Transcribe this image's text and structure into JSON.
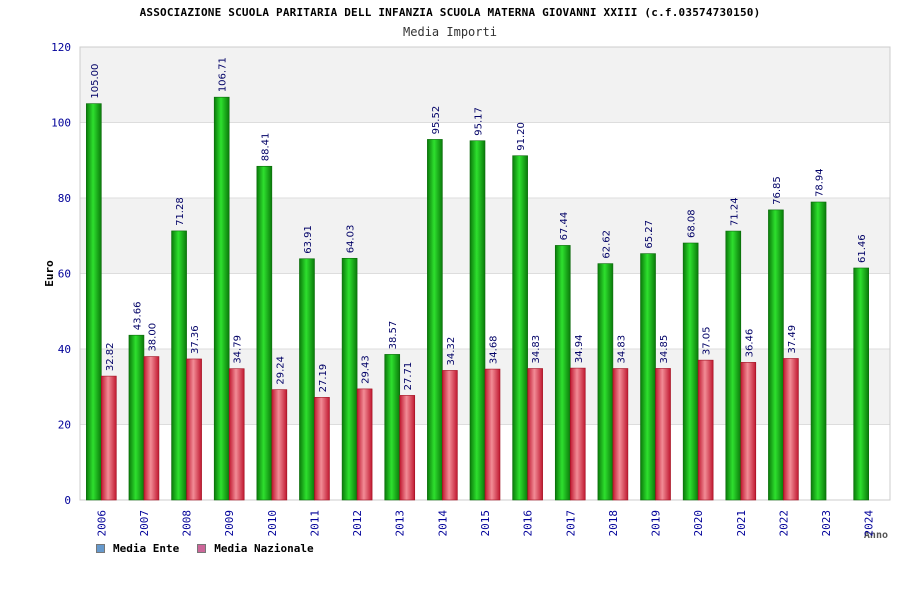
{
  "chart_data": {
    "type": "bar",
    "title": "ASSOCIAZIONE SCUOLA PARITARIA DELL INFANZIA SCUOLA MATERNA GIOVANNI XXIII (c.f.03574730150)",
    "subtitle": "Media Importi",
    "xlabel": "Anno",
    "ylabel": "Euro",
    "ylim": [
      0,
      120
    ],
    "yticks": [
      0,
      20,
      40,
      60,
      80,
      100,
      120
    ],
    "grid": true,
    "legend_position": "bottom-left",
    "categories": [
      "2006",
      "2007",
      "2008",
      "2009",
      "2010",
      "2011",
      "2012",
      "2013",
      "2014",
      "2015",
      "2016",
      "2017",
      "2018",
      "2019",
      "2020",
      "2021",
      "2022",
      "2023",
      "2024"
    ],
    "series": [
      {
        "name": "Media Ente",
        "color": "#1fa31f",
        "legend_color": "#6699cc",
        "values": [
          105.0,
          43.66,
          71.28,
          106.71,
          88.41,
          63.91,
          64.03,
          38.57,
          95.52,
          95.17,
          91.2,
          67.44,
          62.62,
          65.27,
          68.08,
          71.24,
          76.85,
          78.94,
          61.46
        ],
        "labels": [
          "105.00",
          "43.66",
          "71.28",
          "106.71",
          "88.41",
          "63.91",
          "64.03",
          "38.57",
          "95.52",
          "95.17",
          "91.20",
          "67.44",
          "62.62",
          "65.27",
          "68.08",
          "71.24",
          "76.85",
          "78.94",
          "61.46"
        ]
      },
      {
        "name": "Media Nazionale",
        "color": "#e0404a",
        "legend_color": "#cc6699",
        "values": [
          32.82,
          38.0,
          37.36,
          34.79,
          29.24,
          27.19,
          29.43,
          27.71,
          34.32,
          34.68,
          34.83,
          34.94,
          34.83,
          34.85,
          37.05,
          36.46,
          37.49,
          null,
          null
        ],
        "labels": [
          "32.82",
          "38.00",
          "37.36",
          "34.79",
          "29.24",
          "27.19",
          "29.43",
          "27.71",
          "34.32",
          "34.68",
          "34.83",
          "34.94",
          "34.83",
          "34.85",
          "37.05",
          "36.46",
          "37.49",
          "",
          ""
        ]
      }
    ]
  }
}
